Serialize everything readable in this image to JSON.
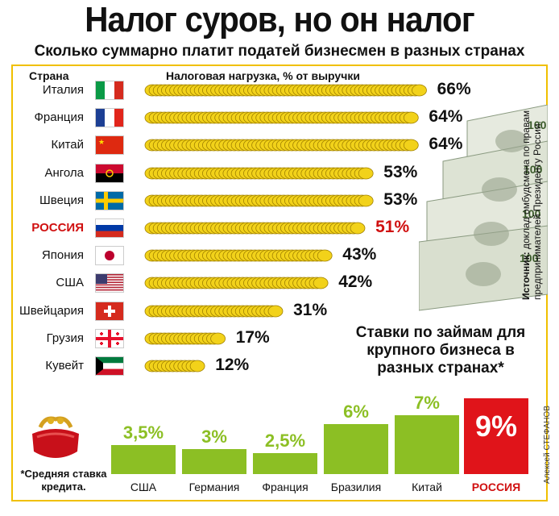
{
  "header": {
    "title": "Налог суров, но он налог",
    "subtitle": "Сколько суммарно платит податей бизнесмен в разных странах"
  },
  "chart_data": [
    {
      "type": "bar",
      "xlabel": "Страна",
      "ylabel": "Налоговая нагрузка, % от выручки",
      "categories": [
        "Италия",
        "Франция",
        "Китай",
        "Ангола",
        "Швеция",
        "РОССИЯ",
        "Япония",
        "США",
        "Швейцария",
        "Грузия",
        "Кувейт"
      ],
      "values": [
        66,
        64,
        64,
        53,
        53,
        51,
        43,
        42,
        31,
        17,
        12
      ],
      "value_labels": [
        "66%",
        "64%",
        "64%",
        "53%",
        "53%",
        "51%",
        "43%",
        "42%",
        "31%",
        "17%",
        "12%"
      ],
      "highlight": "РОССИЯ"
    },
    {
      "type": "bar",
      "title": "Ставки по займам для крупного бизнеса в разных странах*",
      "categories": [
        "США",
        "Германия",
        "Франция",
        "Бразилия",
        "Китай",
        "РОССИЯ"
      ],
      "values": [
        3.5,
        3,
        2.5,
        6,
        7,
        9
      ],
      "value_labels": [
        "3,5%",
        "3%",
        "2,5%",
        "6%",
        "7%",
        "9%"
      ],
      "highlight": "РОССИЯ"
    }
  ],
  "source": {
    "label": "Источник:",
    "text": " доклад омбудсмена по правам предпринимателей Президенту России."
  },
  "footnote": "*Средняя ставка кредита.",
  "author": "Алексей СТЕФАНОВ",
  "colors": {
    "accent": "#f0c000",
    "green": "#8cbf24",
    "red": "#e0141a",
    "coin": "#f2d21a"
  }
}
